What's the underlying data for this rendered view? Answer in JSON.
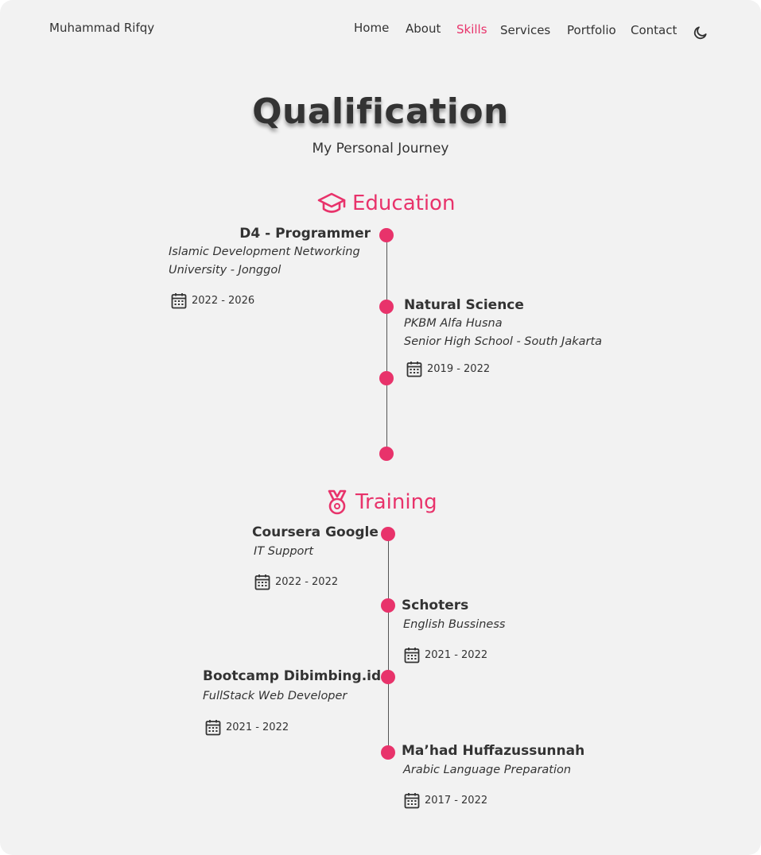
{
  "header": {
    "brand": "Muhammad Rifqy",
    "nav": [
      "Home",
      "About",
      "Skills",
      "Services",
      "Portfolio",
      "Contact"
    ],
    "active_nav": "Skills",
    "theme_icon": "moon-icon"
  },
  "section": {
    "title": "Qualification",
    "subtitle": "My Personal Journey"
  },
  "accent_color": "#e8336b",
  "education": {
    "heading": "Education",
    "icon": "graduation-cap-icon",
    "items": [
      {
        "title": "D4 - Programmer",
        "sub1": "Islamic Development Networking",
        "sub2": "University - Jonggol",
        "date": "2022 - 2026"
      },
      {
        "title": "Natural Science",
        "sub1": "PKBM Alfa Husna",
        "sub2": "Senior High School - South Jakarta",
        "date": "2019 - 2022"
      }
    ]
  },
  "training": {
    "heading": "Training",
    "icon": "medal-icon",
    "items": [
      {
        "title": "Coursera Google",
        "sub": "IT Support",
        "date": "2022 - 2022"
      },
      {
        "title": "Schoters",
        "sub": "English Bussiness",
        "date": "2021 - 2022"
      },
      {
        "title": "Bootcamp Dibimbing.id",
        "sub": "FullStack Web Developer",
        "date": "2021 - 2022"
      },
      {
        "title": "Ma’had Huffazussunnah",
        "sub": "Arabic Language Preparation",
        "date": "2017 - 2022"
      }
    ]
  }
}
